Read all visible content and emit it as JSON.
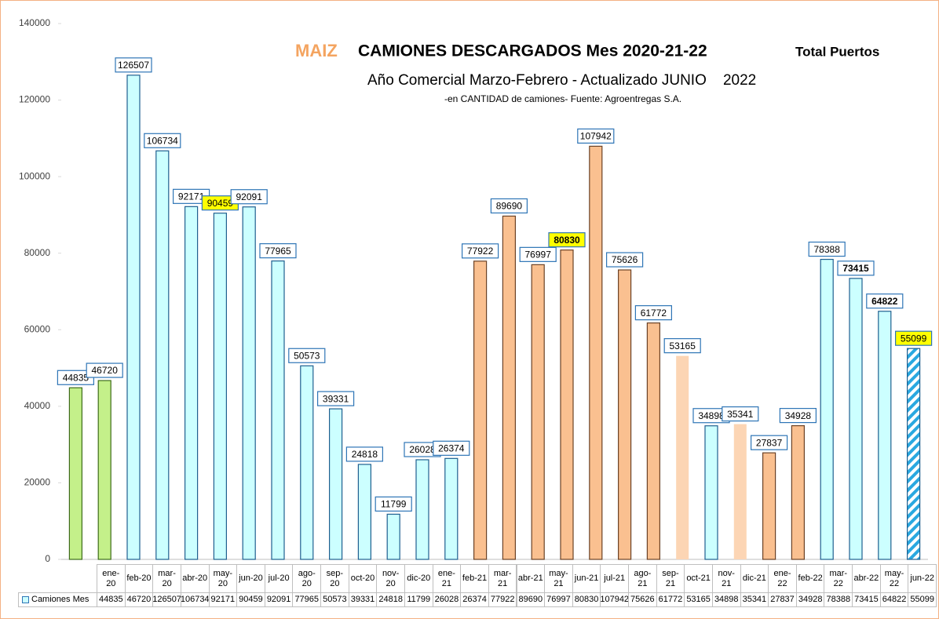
{
  "chart_data": {
    "type": "bar",
    "title_prefix": "MAIZ",
    "title": "CAMIONES DESCARGADOS  Mes  2020-21-22",
    "title_suffix": "Total Puertos",
    "subtitle": "Año Comercial Marzo-Febrero - Actualizado JUNIO    2022",
    "note": "-en CANTIDAD  de camiones- Fuente: Agroentregas S.A.",
    "categories": [
      "ene-20",
      "feb-20",
      "mar-20",
      "abr-20",
      "may-20",
      "jun-20",
      "jul-20",
      "ago-20",
      "sep-20",
      "oct-20",
      "nov-20",
      "dic-20",
      "ene-21",
      "feb-21",
      "mar-21",
      "abr-21",
      "may-21",
      "jun-21",
      "jul-21",
      "ago-21",
      "sep-21",
      "oct-21",
      "nov-21",
      "dic-21",
      "ene-22",
      "feb-22",
      "mar-22",
      "abr-22",
      "may-22",
      "jun-22"
    ],
    "series": [
      {
        "name": "Camiones Mes",
        "color": "#ccffff",
        "values": [
          44835,
          46720,
          126507,
          106734,
          92171,
          90459,
          92091,
          77965,
          50573,
          39331,
          24818,
          11799,
          26028,
          26374,
          77922,
          89690,
          76997,
          80830,
          107942,
          75626,
          61772,
          53165,
          34898,
          35341,
          27837,
          34928,
          78388,
          73415,
          64822,
          55099
        ],
        "colors": [
          "#c4f08a",
          "#c4f08a",
          "#ccffff",
          "#ccffff",
          "#ccffff",
          "#ccffff",
          "#ccffff",
          "#ccffff",
          "#ccffff",
          "#ccffff",
          "#ccffff",
          "#ccffff",
          "#ccffff",
          "#ccffff",
          "#fac090",
          "#fac090",
          "#fac090",
          "#fac090",
          "#fac090",
          "#fac090",
          "#fac090",
          "#fcd5b4",
          "#ccffff",
          "#fcd5b4",
          "#fac090",
          "#fac090",
          "#ccffff",
          "#ccffff",
          "#ccffff",
          "#ccffff"
        ],
        "edge_colors": [
          "#3d6b1a",
          "#3d6b1a",
          "#1f5f8f",
          "#1f5f8f",
          "#1f5f8f",
          "#1f5f8f",
          "#1f5f8f",
          "#1f5f8f",
          "#1f5f8f",
          "#1f5f8f",
          "#1f5f8f",
          "#1f5f8f",
          "#1f5f8f",
          "#1f5f8f",
          "#6b4226",
          "#6b4226",
          "#6b4226",
          "#6b4226",
          "#6b4226",
          "#6b4226",
          "#6b4226",
          null,
          "#1f5f8f",
          null,
          "#6b4226",
          "#6b4226",
          "#1f5f8f",
          "#1f5f8f",
          "#1f5f8f",
          "#1f5f8f"
        ]
      }
    ],
    "highlight_labels": [
      5,
      17,
      29
    ],
    "bold_labels": [
      17,
      27,
      28
    ],
    "hatched": [
      29
    ],
    "ylim": [
      0,
      140000
    ],
    "yticks": [
      0,
      20000,
      40000,
      60000,
      80000,
      100000,
      120000,
      140000
    ],
    "grid": false
  }
}
